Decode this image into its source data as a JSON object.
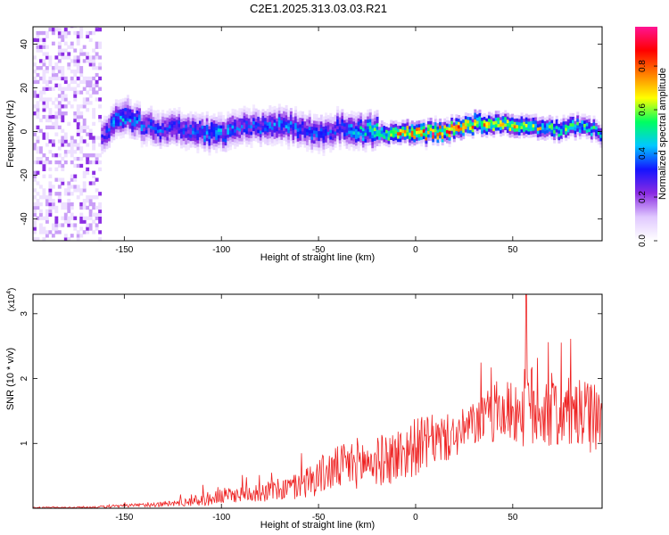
{
  "figure_title": "C2E1.2025.313.03.03.R21",
  "chart_data": [
    {
      "type": "heatmap",
      "xlabel": "Height of straight line (km)",
      "ylabel": "Frequency (Hz)",
      "xlim": [
        -197,
        96
      ],
      "ylim": [
        -50,
        48
      ],
      "xticks": [
        -150,
        -100,
        -50,
        0,
        50
      ],
      "yticks": [
        -40,
        -20,
        0,
        20,
        40
      ],
      "colorbar": {
        "label": "Normalized spectral amplitude",
        "range": [
          0,
          0.98
        ],
        "ticks": [
          0.0,
          0.2,
          0.4,
          0.6,
          0.8
        ],
        "colormap": [
          "#ffffff",
          "#e0c8ff",
          "#8a2be2",
          "#1414ff",
          "#00c8ff",
          "#00ff60",
          "#ffff00",
          "#ff8000",
          "#ff0000",
          "#ff1493"
        ]
      },
      "ridge": {
        "x": [
          -162,
          -155,
          -150,
          -140,
          -130,
          -120,
          -110,
          -100,
          -90,
          -80,
          -70,
          -60,
          -50,
          -40,
          -30,
          -20,
          -10,
          0,
          10,
          20,
          30,
          40,
          50,
          60,
          70,
          80,
          90,
          96
        ],
        "y": [
          -4,
          5,
          7,
          2,
          0,
          1,
          -1,
          -2,
          2,
          1,
          3,
          0,
          -2,
          1,
          0,
          -1,
          -2,
          -1,
          -1,
          1,
          3,
          2,
          3,
          1,
          0,
          2,
          1,
          -2
        ],
        "peak_amplitude": [
          0.3,
          0.4,
          0.45,
          0.35,
          0.35,
          0.35,
          0.4,
          0.4,
          0.35,
          0.35,
          0.4,
          0.35,
          0.35,
          0.35,
          0.45,
          0.55,
          0.7,
          0.85,
          0.85,
          0.8,
          0.75,
          0.7,
          0.7,
          0.65,
          0.6,
          0.55,
          0.5,
          0.45
        ]
      },
      "noise_region_xlim": [
        -197,
        -162
      ]
    },
    {
      "type": "line",
      "xlabel": "Height of straight line (km)",
      "ylabel": "SNR (10 * v/v)",
      "scale_label": "(x10^4)",
      "xlim": [
        -197,
        96
      ],
      "ylim": [
        0,
        3.3
      ],
      "xticks": [
        -150,
        -100,
        -50,
        0,
        50
      ],
      "yticks": [
        1,
        2,
        3
      ],
      "color": "#ee2222",
      "x": [
        -197,
        -180,
        -160,
        -140,
        -130,
        -120,
        -110,
        -100,
        -90,
        -80,
        -70,
        -60,
        -50,
        -40,
        -30,
        -20,
        -10,
        0,
        10,
        20,
        30,
        40,
        50,
        60,
        70,
        80,
        90,
        96
      ],
      "y": [
        0.01,
        0.01,
        0.02,
        0.05,
        0.06,
        0.09,
        0.13,
        0.18,
        0.22,
        0.25,
        0.28,
        0.35,
        0.5,
        0.62,
        0.7,
        0.72,
        0.8,
        0.95,
        1.05,
        1.1,
        1.3,
        1.45,
        1.5,
        1.55,
        1.5,
        1.45,
        1.4,
        1.35
      ],
      "noise_amplitude": [
        0.01,
        0.01,
        0.02,
        0.03,
        0.04,
        0.06,
        0.1,
        0.13,
        0.12,
        0.15,
        0.18,
        0.22,
        0.3,
        0.35,
        0.4,
        0.38,
        0.45,
        0.45,
        0.4,
        0.35,
        0.35,
        0.45,
        0.5,
        0.7,
        0.6,
        0.55,
        0.55,
        0.5
      ],
      "peak": {
        "x": 57,
        "y": 3.3
      }
    }
  ]
}
